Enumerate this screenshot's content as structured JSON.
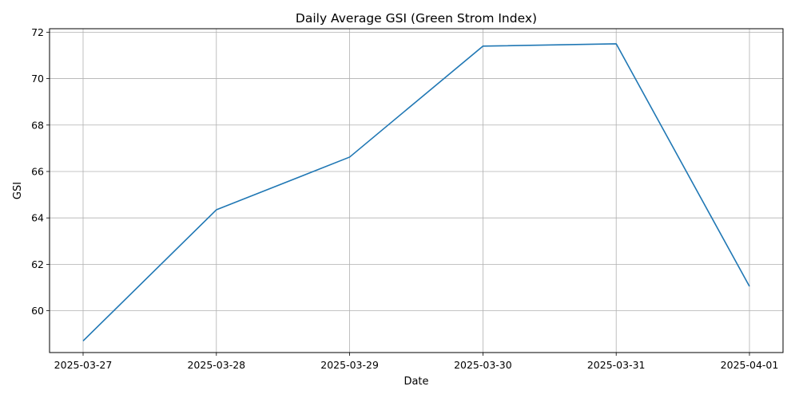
{
  "chart_data": {
    "type": "line",
    "title": "Daily Average GSI (Green Strom Index)",
    "xlabel": "Date",
    "ylabel": "GSI",
    "x": [
      "2025-03-27",
      "2025-03-28",
      "2025-03-29",
      "2025-03-30",
      "2025-03-31",
      "2025-04-01"
    ],
    "series": [
      {
        "values": [
          58.7,
          64.35,
          66.62,
          71.4,
          71.5,
          61.05
        ],
        "color": "#1f77b4"
      }
    ],
    "ylim": [
      58.2,
      72.15
    ],
    "yticks": [
      60,
      62,
      64,
      66,
      68,
      70,
      72
    ],
    "ytick_labels": [
      "60",
      "62",
      "64",
      "66",
      "68",
      "70",
      "72"
    ],
    "grid": true,
    "legend": "none"
  }
}
